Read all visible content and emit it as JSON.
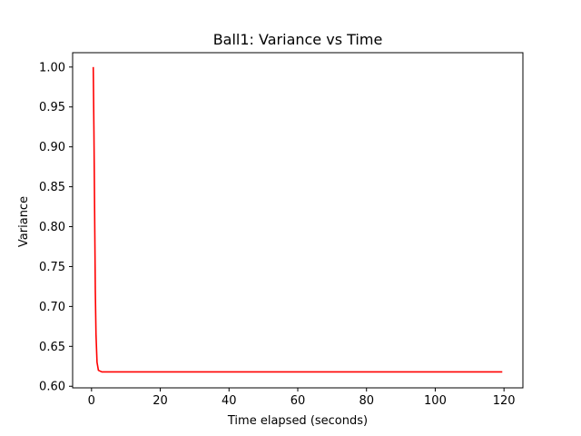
{
  "chart_data": {
    "type": "line",
    "title": "Ball1: Variance vs Time",
    "xlabel": "Time elapsed (seconds)",
    "ylabel": "Variance",
    "xlim": [
      -5.5,
      125.5
    ],
    "ylim": [
      0.598,
      1.018
    ],
    "xticks": [
      0,
      20,
      40,
      60,
      80,
      100,
      120
    ],
    "xtick_labels": [
      "0",
      "20",
      "40",
      "60",
      "80",
      "100",
      "120"
    ],
    "yticks": [
      0.6,
      0.65,
      0.7,
      0.75,
      0.8,
      0.85,
      0.9,
      0.95,
      1.0
    ],
    "ytick_labels": [
      "0.60",
      "0.65",
      "0.70",
      "0.75",
      "0.80",
      "0.85",
      "0.90",
      "0.95",
      "1.00"
    ],
    "grid": false,
    "series": [
      {
        "color": "#ff0000",
        "x": [
          0.5,
          0.7,
          0.9,
          1.1,
          1.3,
          1.6,
          2.0,
          3.0,
          5.0,
          10,
          20,
          40,
          60,
          80,
          100,
          119.5
        ],
        "y": [
          1.0,
          0.92,
          0.82,
          0.72,
          0.665,
          0.63,
          0.62,
          0.618,
          0.618,
          0.618,
          0.618,
          0.618,
          0.618,
          0.618,
          0.618,
          0.618
        ]
      }
    ]
  }
}
